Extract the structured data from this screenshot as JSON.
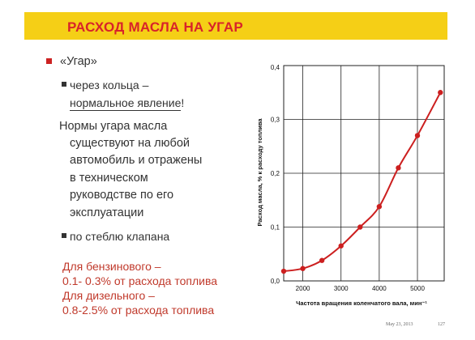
{
  "slide": {
    "title": "РАСХОД МАСЛА НА УГАР",
    "bullet_main": "«Угар»",
    "sub1_line1": "через кольца –",
    "sub1_line2a": "нормальное явление",
    "sub1_line2b": "!",
    "para": [
      "Нормы угара масла",
      "существуют на любой",
      "автомобиль и отражены",
      "в техническом",
      "руководстве по его",
      "эксплуатации"
    ],
    "sub2": "по стеблю клапана",
    "red_lines": [
      "Для бензинового –",
      "0.1- 0.3% от расхода топлива",
      "Для дизельного –",
      "0.8-2.5% от расхода топлива"
    ],
    "footer_date": "May 23, 2013",
    "footer_page": "127",
    "line_color": "#cc1f1f",
    "accent_color": "#f5cf16"
  },
  "chart_data": {
    "type": "line",
    "xlabel": "Частота вращения коленчатого вала, мин⁻¹",
    "ylabel": "Расход масла, % к расходу топлива",
    "xlim": [
      1500,
      5700
    ],
    "ylim": [
      0,
      0.4
    ],
    "x_ticks": [
      2000,
      3000,
      4000,
      5000
    ],
    "x_tick_labels": [
      "2000",
      "3000",
      "4000",
      "5000"
    ],
    "y_ticks": [
      0,
      0.1,
      0.2,
      0.3,
      0.4
    ],
    "y_tick_labels": [
      "0,0",
      "0,1",
      "0,2",
      "0,3",
      "0,4"
    ],
    "grid": true,
    "series": [
      {
        "x": [
          1500,
          2000,
          2500,
          3000,
          3500,
          4000,
          4500,
          5000,
          5600
        ],
        "y": [
          0.018,
          0.023,
          0.038,
          0.065,
          0.1,
          0.138,
          0.21,
          0.27,
          0.35
        ]
      }
    ]
  }
}
